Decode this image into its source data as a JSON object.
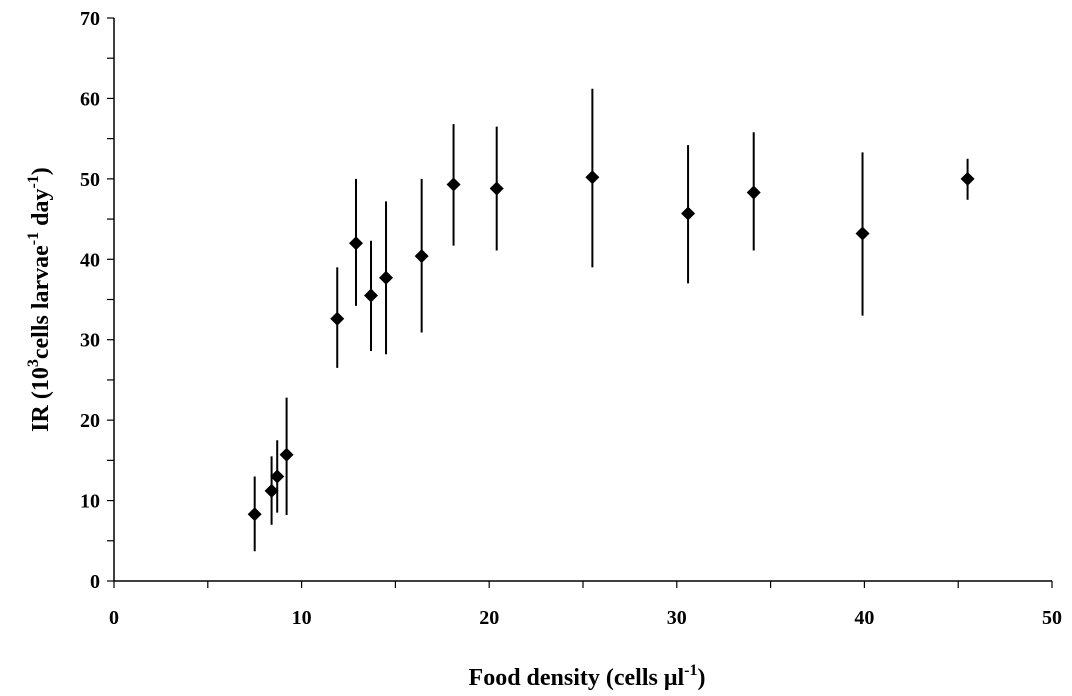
{
  "chart_data": {
    "type": "scatter",
    "xlabel": "Food density (cells μl",
    "xlabel_sup": "-1",
    "xlabel_end": ")",
    "ylabel_parts": [
      "IR (10",
      "3",
      "cells larvae",
      "-1",
      " day",
      "-1",
      ")"
    ],
    "xlim": [
      0,
      50
    ],
    "ylim": [
      0,
      70
    ],
    "x_ticks": [
      0,
      10,
      20,
      30,
      40,
      50
    ],
    "y_ticks": [
      0,
      10,
      20,
      30,
      40,
      50,
      60,
      70
    ],
    "x_minor_step": 5,
    "y_minor_step": 5,
    "grid": false,
    "marker": "diamond",
    "color": "#000000",
    "points": [
      {
        "x": 7.5,
        "y": 8.3,
        "err_low": 3.7,
        "err_high": 13.0
      },
      {
        "x": 8.4,
        "y": 11.2,
        "err_low": 7.0,
        "err_high": 15.5
      },
      {
        "x": 8.7,
        "y": 13.0,
        "err_low": 8.5,
        "err_high": 17.5
      },
      {
        "x": 9.2,
        "y": 15.7,
        "err_low": 8.2,
        "err_high": 22.8
      },
      {
        "x": 11.9,
        "y": 32.6,
        "err_low": 26.5,
        "err_high": 39.0
      },
      {
        "x": 12.9,
        "y": 42.0,
        "err_low": 34.2,
        "err_high": 50.0
      },
      {
        "x": 13.7,
        "y": 35.5,
        "err_low": 28.6,
        "err_high": 42.3
      },
      {
        "x": 14.5,
        "y": 37.7,
        "err_low": 28.2,
        "err_high": 47.2
      },
      {
        "x": 16.4,
        "y": 40.4,
        "err_low": 30.9,
        "err_high": 50.0
      },
      {
        "x": 18.1,
        "y": 49.3,
        "err_low": 41.7,
        "err_high": 56.8
      },
      {
        "x": 20.4,
        "y": 48.8,
        "err_low": 41.1,
        "err_high": 56.5
      },
      {
        "x": 25.5,
        "y": 50.2,
        "err_low": 39.0,
        "err_high": 61.2
      },
      {
        "x": 30.6,
        "y": 45.7,
        "err_low": 37.0,
        "err_high": 54.2
      },
      {
        "x": 34.1,
        "y": 48.3,
        "err_low": 41.1,
        "err_high": 55.8
      },
      {
        "x": 39.9,
        "y": 43.2,
        "err_low": 33.0,
        "err_high": 53.3
      },
      {
        "x": 45.5,
        "y": 50.0,
        "err_low": 47.4,
        "err_high": 52.5
      }
    ]
  }
}
